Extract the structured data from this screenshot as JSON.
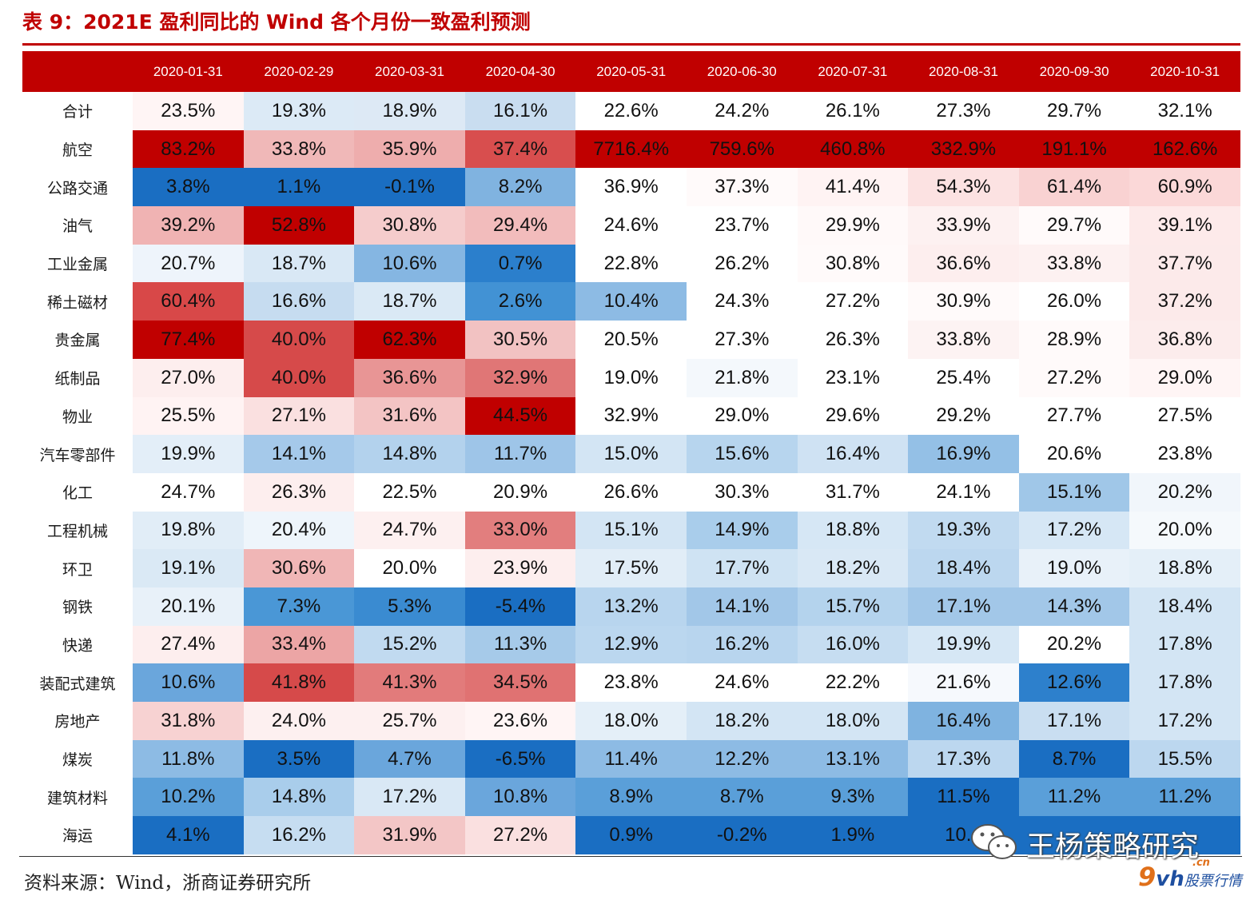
{
  "title": "表 9：2021E 盈利同比的 Wind 各个月份一致盈利预测",
  "table": {
    "columns": [
      "2020-01-31",
      "2020-02-29",
      "2020-03-31",
      "2020-04-30",
      "2020-05-31",
      "2020-06-30",
      "2020-07-31",
      "2020-08-31",
      "2020-09-30",
      "2020-10-31"
    ],
    "rows": [
      {
        "name": "合计",
        "values": [
          "23.5%",
          "19.3%",
          "18.9%",
          "16.1%",
          "22.6%",
          "24.2%",
          "26.1%",
          "27.3%",
          "29.7%",
          "32.1%"
        ],
        "colors": [
          "#fff5f5",
          "#dceaf6",
          "#dde9f5",
          "#c9ddf0",
          "#ffffff",
          "#ffffff",
          "#ffffff",
          "#ffffff",
          "#ffffff",
          "#ffffff"
        ]
      },
      {
        "name": "航空",
        "values": [
          "83.2%",
          "33.8%",
          "35.9%",
          "37.4%",
          "7716.4%",
          "759.6%",
          "460.8%",
          "332.9%",
          "191.1%",
          "162.6%"
        ],
        "colors": [
          "#c00000",
          "#f0b8b8",
          "#eeadad",
          "#d84e4e",
          "#c00000",
          "#c00000",
          "#c00000",
          "#c00000",
          "#c00000",
          "#c00000"
        ]
      },
      {
        "name": "公路交通",
        "values": [
          "3.8%",
          "1.1%",
          "-0.1%",
          "8.2%",
          "36.9%",
          "37.3%",
          "41.4%",
          "54.3%",
          "61.4%",
          "60.9%"
        ],
        "colors": [
          "#1a6ec2",
          "#1a6ec2",
          "#1a6ec2",
          "#80b3e0",
          "#ffffff",
          "#fffafa",
          "#fff3f3",
          "#fce2e2",
          "#f9d2d2",
          "#fbd8d8"
        ]
      },
      {
        "name": "油气",
        "values": [
          "39.2%",
          "52.8%",
          "30.8%",
          "29.4%",
          "24.6%",
          "23.7%",
          "29.9%",
          "33.9%",
          "29.7%",
          "39.1%"
        ],
        "colors": [
          "#f0b3b3",
          "#c00000",
          "#f5cccc",
          "#f2bcbc",
          "#ffffff",
          "#ffffff",
          "#fff9f9",
          "#fdf1f1",
          "#fffafa",
          "#fdeaea"
        ]
      },
      {
        "name": "工业金属",
        "values": [
          "20.7%",
          "18.7%",
          "10.6%",
          "0.7%",
          "22.8%",
          "26.2%",
          "30.8%",
          "36.6%",
          "33.8%",
          "37.7%"
        ],
        "colors": [
          "#eef4fb",
          "#d9e8f5",
          "#85b6e2",
          "#2b7fcc",
          "#ffffff",
          "#ffffff",
          "#fffafa",
          "#fdeeee",
          "#fdf1f1",
          "#fceaea"
        ]
      },
      {
        "name": "稀土磁材",
        "values": [
          "60.4%",
          "16.6%",
          "18.7%",
          "2.6%",
          "10.4%",
          "24.3%",
          "27.2%",
          "30.9%",
          "26.0%",
          "37.2%"
        ],
        "colors": [
          "#d84848",
          "#c6dcf0",
          "#dae9f5",
          "#4292d4",
          "#8dbbe4",
          "#ffffff",
          "#ffffff",
          "#fffafa",
          "#ffffff",
          "#fceaea"
        ]
      },
      {
        "name": "贵金属",
        "values": [
          "77.4%",
          "40.0%",
          "62.3%",
          "30.5%",
          "20.5%",
          "27.3%",
          "26.3%",
          "33.8%",
          "28.9%",
          "36.8%"
        ],
        "colors": [
          "#c00000",
          "#d64a4a",
          "#c00000",
          "#f2c2c2",
          "#ffffff",
          "#ffffff",
          "#ffffff",
          "#fdf3f3",
          "#fffafa",
          "#fcecec"
        ]
      },
      {
        "name": "纸制品",
        "values": [
          "27.0%",
          "40.0%",
          "36.6%",
          "32.9%",
          "19.0%",
          "21.8%",
          "23.1%",
          "25.4%",
          "27.2%",
          "29.0%"
        ],
        "colors": [
          "#fdeeee",
          "#d64a4a",
          "#e89595",
          "#e07676",
          "#ffffff",
          "#f4f8fc",
          "#ffffff",
          "#ffffff",
          "#fffafa",
          "#fff5f5"
        ]
      },
      {
        "name": "物业",
        "values": [
          "25.5%",
          "27.1%",
          "31.6%",
          "44.5%",
          "32.9%",
          "29.0%",
          "29.6%",
          "29.2%",
          "27.7%",
          "27.5%"
        ],
        "colors": [
          "#fff3f3",
          "#fae0e0",
          "#f3c4c4",
          "#c00000",
          "#ffffff",
          "#ffffff",
          "#ffffff",
          "#ffffff",
          "#ffffff",
          "#ffffff"
        ]
      },
      {
        "name": "汽车零部件",
        "values": [
          "19.9%",
          "14.1%",
          "14.8%",
          "11.7%",
          "15.0%",
          "15.6%",
          "16.4%",
          "16.9%",
          "20.6%",
          "23.8%"
        ],
        "colors": [
          "#e3eef8",
          "#a5c9ea",
          "#b3d2ed",
          "#9ec5e8",
          "#d3e5f4",
          "#b7d5ee",
          "#cfe2f3",
          "#94c0e6",
          "#ffffff",
          "#ffffff"
        ]
      },
      {
        "name": "化工",
        "values": [
          "24.7%",
          "26.3%",
          "22.5%",
          "20.9%",
          "26.6%",
          "30.3%",
          "31.7%",
          "24.1%",
          "15.1%",
          "20.2%"
        ],
        "colors": [
          "#ffffff",
          "#fdeeee",
          "#ffffff",
          "#ffffff",
          "#ffffff",
          "#ffffff",
          "#ffffff",
          "#ffffff",
          "#a0c7e8",
          "#f1f6fb"
        ]
      },
      {
        "name": "工程机械",
        "values": [
          "19.8%",
          "20.4%",
          "24.7%",
          "33.0%",
          "15.1%",
          "14.9%",
          "18.8%",
          "19.3%",
          "17.2%",
          "20.0%"
        ],
        "colors": [
          "#e1edf7",
          "#eef5fb",
          "#fdf0f0",
          "#e27e7e",
          "#d3e5f4",
          "#a9cdeb",
          "#d6e7f5",
          "#c1daf0",
          "#d6e7f5",
          "#f5f9fc"
        ]
      },
      {
        "name": "环卫",
        "values": [
          "19.1%",
          "30.6%",
          "20.0%",
          "23.9%",
          "17.5%",
          "17.7%",
          "18.2%",
          "18.4%",
          "19.0%",
          "18.8%"
        ],
        "colors": [
          "#dae9f5",
          "#f0b6b6",
          "#ffffff",
          "#fdeeee",
          "#e1edf7",
          "#cfe3f3",
          "#d9e8f5",
          "#bcd7ef",
          "#e8f1f9",
          "#e4eff8"
        ]
      },
      {
        "name": "钢铁",
        "values": [
          "20.1%",
          "7.3%",
          "5.3%",
          "-5.4%",
          "13.2%",
          "14.1%",
          "15.7%",
          "17.1%",
          "14.3%",
          "18.4%"
        ],
        "colors": [
          "#e8f1f9",
          "#4a97d6",
          "#3a8bd1",
          "#1a6ec2",
          "#b8d5ee",
          "#a2c7e8",
          "#b4d3ed",
          "#a2c7e8",
          "#a2c7e8",
          "#d3e5f4"
        ]
      },
      {
        "name": "快递",
        "values": [
          "27.4%",
          "33.4%",
          "15.2%",
          "11.3%",
          "12.9%",
          "16.2%",
          "16.0%",
          "19.9%",
          "20.2%",
          "17.8%"
        ],
        "colors": [
          "#fdeeee",
          "#eca5a5",
          "#c1daf0",
          "#a6cae9",
          "#bbd7ef",
          "#b8d5ee",
          "#c6ddf1",
          "#d6e7f5",
          "#ffffff",
          "#d3e5f4"
        ]
      },
      {
        "name": "装配式建筑",
        "values": [
          "10.6%",
          "41.8%",
          "41.3%",
          "34.5%",
          "23.8%",
          "24.6%",
          "22.2%",
          "21.6%",
          "12.6%",
          "17.8%"
        ],
        "colors": [
          "#6aa6dc",
          "#d64a4a",
          "#e27b7b",
          "#e07272",
          "#ffffff",
          "#ffffff",
          "#ffffff",
          "#f6f9fd",
          "#2d80cc",
          "#d3e5f4"
        ]
      },
      {
        "name": "房地产",
        "values": [
          "31.8%",
          "24.0%",
          "25.7%",
          "23.6%",
          "18.0%",
          "18.2%",
          "18.0%",
          "16.4%",
          "17.1%",
          "17.2%"
        ],
        "colors": [
          "#f7d2d2",
          "#fdf0f0",
          "#fdf0f0",
          "#fff5f5",
          "#e4eff8",
          "#d3e5f4",
          "#d3e5f4",
          "#7fb3e0",
          "#c9def1",
          "#d3e5f4"
        ]
      },
      {
        "name": "煤炭",
        "values": [
          "11.8%",
          "3.5%",
          "4.7%",
          "-6.5%",
          "11.4%",
          "12.2%",
          "13.1%",
          "17.3%",
          "8.7%",
          "15.5%"
        ],
        "colors": [
          "#8dbbe4",
          "#1a6ec2",
          "#6aa6dc",
          "#1a6ec2",
          "#8dbbe4",
          "#8dbbe4",
          "#8dbbe4",
          "#bcd7ef",
          "#1a6ec2",
          "#bcd7ef"
        ]
      },
      {
        "name": "建筑材料",
        "values": [
          "10.2%",
          "14.8%",
          "17.2%",
          "10.8%",
          "8.9%",
          "8.7%",
          "9.3%",
          "11.5%",
          "11.2%",
          "11.2%"
        ],
        "colors": [
          "#5a9fd9",
          "#a9cdeb",
          "#d9e8f5",
          "#6aa6dc",
          "#5a9fd9",
          "#5a9fd9",
          "#5a9fd9",
          "#1a6ec2",
          "#5a9fd9",
          "#5a9fd9"
        ]
      },
      {
        "name": "海运",
        "values": [
          "4.1%",
          "16.2%",
          "31.9%",
          "27.2%",
          "0.9%",
          "-0.2%",
          "1.9%",
          "10.4",
          "",
          ""
        ],
        "colors": [
          "#1a6ec2",
          "#c6ddf1",
          "#f3c6c6",
          "#fae0e0",
          "#1a6ec2",
          "#1a6ec2",
          "#1a6ec2",
          "#1a6ec2",
          "#1a6ec2",
          "#1a6ec2"
        ]
      }
    ]
  },
  "source": "资料来源：Wind，浙商证券研究所",
  "watermark": {
    "text": "王杨策略研究",
    "icon": "wechat-icon"
  },
  "logo": {
    "nine": "9",
    "vh": "vh",
    "text": "股票行情",
    "cn": ".cn"
  }
}
